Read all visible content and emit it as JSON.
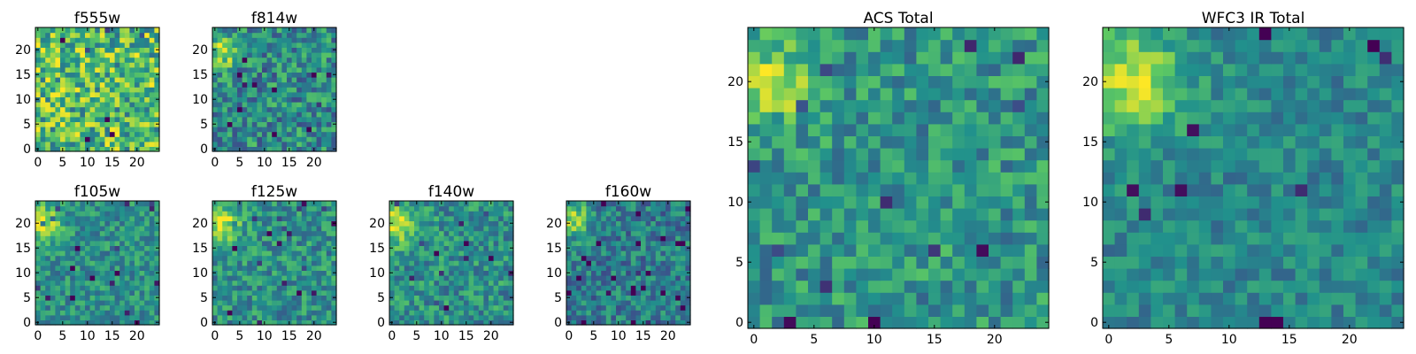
{
  "colormap": [
    "#440154",
    "#3b528b",
    "#21918c",
    "#5ec962",
    "#fde725"
  ],
  "chart_data": [
    {
      "type": "heatmap",
      "title": "f555w",
      "grid_size": 25,
      "xticks": [
        0,
        5,
        10,
        15,
        20
      ],
      "yticks": [
        0,
        5,
        10,
        15,
        20
      ],
      "xlim": [
        0,
        25
      ],
      "ylim": [
        0,
        25
      ],
      "source": {
        "x": 2,
        "y": 18,
        "sigma": 2.0,
        "peak": 0.15
      },
      "noise": 0.32,
      "base": 0.68,
      "seed": 11
    },
    {
      "type": "heatmap",
      "title": "f814w",
      "grid_size": 25,
      "xticks": [
        0,
        5,
        10,
        15,
        20
      ],
      "yticks": [
        0,
        5,
        10,
        15,
        20
      ],
      "xlim": [
        0,
        25
      ],
      "ylim": [
        0,
        25
      ],
      "source": {
        "x": 2,
        "y": 20,
        "sigma": 2.2,
        "peak": 0.42
      },
      "noise": 0.25,
      "base": 0.48,
      "seed": 23
    },
    {
      "type": "heatmap",
      "title": "f105w",
      "grid_size": 25,
      "xticks": [
        0,
        5,
        10,
        15,
        20
      ],
      "yticks": [
        0,
        5,
        10,
        15,
        20
      ],
      "xlim": [
        0,
        25
      ],
      "ylim": [
        0,
        25
      ],
      "source": {
        "x": 1,
        "y": 20,
        "sigma": 2.4,
        "peak": 0.45
      },
      "noise": 0.18,
      "base": 0.5,
      "seed": 37
    },
    {
      "type": "heatmap",
      "title": "f125w",
      "grid_size": 25,
      "xticks": [
        0,
        5,
        10,
        15,
        20
      ],
      "yticks": [
        0,
        5,
        10,
        15,
        20
      ],
      "xlim": [
        0,
        25
      ],
      "ylim": [
        0,
        25
      ],
      "source": {
        "x": 1,
        "y": 20,
        "sigma": 2.6,
        "peak": 0.45
      },
      "noise": 0.2,
      "base": 0.5,
      "seed": 41
    },
    {
      "type": "heatmap",
      "title": "f140w",
      "grid_size": 25,
      "xticks": [
        0,
        5,
        10,
        15,
        20
      ],
      "yticks": [
        0,
        5,
        10,
        15,
        20
      ],
      "xlim": [
        0,
        25
      ],
      "ylim": [
        0,
        25
      ],
      "source": {
        "x": 1,
        "y": 20,
        "sigma": 2.8,
        "peak": 0.45
      },
      "noise": 0.2,
      "base": 0.5,
      "seed": 53
    },
    {
      "type": "heatmap",
      "title": "f160w",
      "grid_size": 25,
      "xticks": [
        0,
        5,
        10,
        15,
        20
      ],
      "yticks": [
        0,
        5,
        10,
        15,
        20
      ],
      "xlim": [
        0,
        25
      ],
      "ylim": [
        0,
        25
      ],
      "source": {
        "x": 1,
        "y": 21,
        "sigma": 2.4,
        "peak": 0.45
      },
      "noise": 0.2,
      "base": 0.42,
      "seed": 67
    },
    {
      "type": "heatmap",
      "title": "ACS Total",
      "grid_size": 25,
      "xticks": [
        0,
        5,
        10,
        15,
        20
      ],
      "yticks": [
        0,
        5,
        10,
        15,
        20
      ],
      "xlim": [
        0,
        25
      ],
      "ylim": [
        0,
        25
      ],
      "source": {
        "x": 2,
        "y": 20,
        "sigma": 2.0,
        "peak": 0.42
      },
      "noise": 0.2,
      "base": 0.52,
      "seed": 79
    },
    {
      "type": "heatmap",
      "title": "WFC3 IR Total",
      "grid_size": 25,
      "xticks": [
        0,
        5,
        10,
        15,
        20
      ],
      "yticks": [
        0,
        5,
        10,
        15,
        20
      ],
      "xlim": [
        0,
        25
      ],
      "ylim": [
        0,
        25
      ],
      "source": {
        "x": 2,
        "y": 20,
        "sigma": 3.0,
        "peak": 0.45
      },
      "noise": 0.14,
      "base": 0.46,
      "seed": 97
    }
  ]
}
